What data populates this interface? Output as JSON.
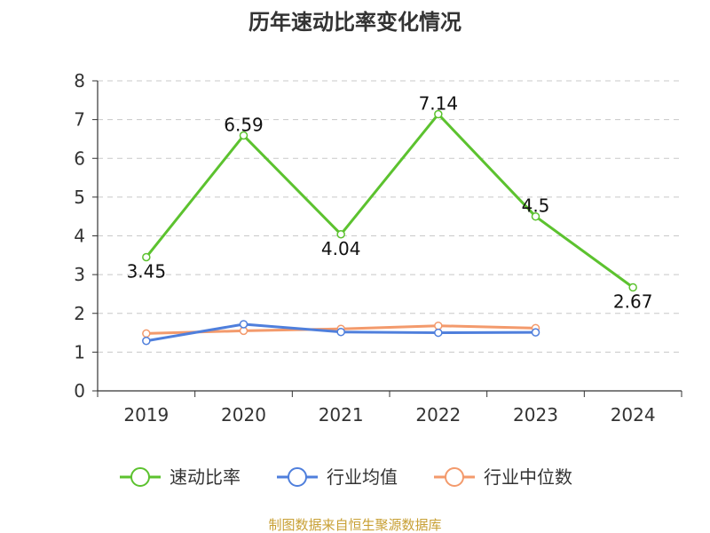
{
  "chart_data": {
    "type": "line",
    "title": "历年速动比率变化情况",
    "categories": [
      "2019",
      "2020",
      "2021",
      "2022",
      "2023",
      "2024"
    ],
    "ylim": [
      0,
      8
    ],
    "yticks": [
      0,
      1,
      2,
      3,
      4,
      5,
      6,
      7,
      8
    ],
    "grid": true,
    "legend_position": "bottom",
    "series": [
      {
        "name": "速动比率",
        "color": "#5cc22f",
        "values": [
          3.45,
          6.59,
          4.04,
          7.14,
          4.5,
          2.67
        ],
        "labels": [
          "3.45",
          "6.59",
          "4.04",
          "7.14",
          "4.5",
          "2.67"
        ]
      },
      {
        "name": "行业均值",
        "color": "#4f7fdc",
        "values": [
          1.29,
          1.72,
          1.52,
          1.5,
          1.51,
          null
        ]
      },
      {
        "name": "行业中位数",
        "color": "#f39a6c",
        "values": [
          1.48,
          1.55,
          1.6,
          1.68,
          1.62,
          null
        ]
      }
    ],
    "source": "制图数据来自恒生聚源数据库",
    "source_color": "#c8a035"
  }
}
